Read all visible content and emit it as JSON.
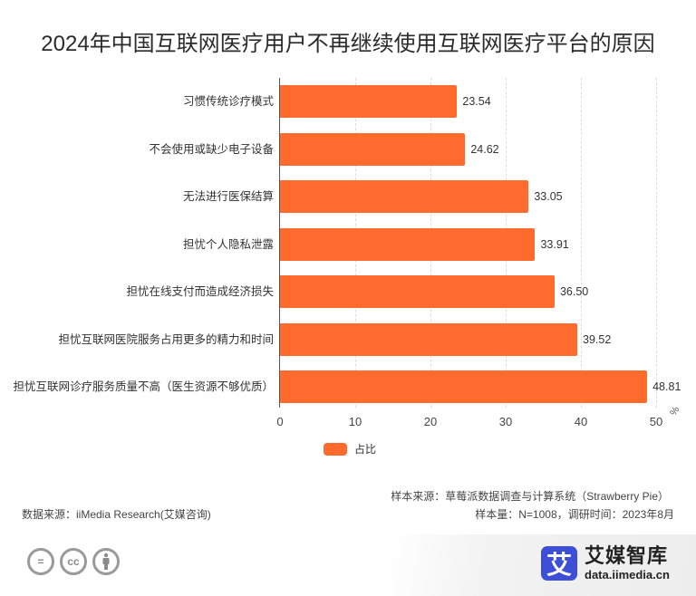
{
  "title": "2024年中国互联网医疗用户不再继续使用互联网医疗平台的原因",
  "chart_data": {
    "type": "bar",
    "orientation": "horizontal",
    "title": "2024年中国互联网医疗用户不再继续使用互联网医疗平台的原因",
    "categories": [
      "习惯传统诊疗模式",
      "不会使用或缺少电子设备",
      "无法进行医保结算",
      "担忧个人隐私泄露",
      "担忧在线支付而造成经济损失",
      "担忧互联网医院服务占用更多的精力和时间",
      "担忧互联网诊疗服务质量不高（医生资源不够优质）"
    ],
    "series": [
      {
        "name": "占比",
        "color": "#fe6b2c",
        "values": [
          23.54,
          24.62,
          33.05,
          33.91,
          36.5,
          39.52,
          48.81
        ]
      }
    ],
    "value_labels": [
      "23.54",
      "24.62",
      "33.05",
      "33.91",
      "36.50",
      "39.52",
      "48.81"
    ],
    "xlabel": "",
    "ylabel": "",
    "x_unit": "%",
    "xlim": [
      0,
      50
    ],
    "x_ticks": [
      "0",
      "10",
      "20",
      "30",
      "40",
      "50"
    ],
    "grid": "vertical dashed",
    "legend_position": "bottom"
  },
  "legend": {
    "label": "占比"
  },
  "notes": {
    "sample_source": "样本来源：草莓派数据调查与计算系统（Strawberry Pie）",
    "sample_size": "样本量：N=1008，调研时间：2023年8月",
    "data_source": "数据来源：iiMedia Research(艾媒咨询)"
  },
  "footer": {
    "license_icons": [
      "no-derivatives-icon",
      "cc-icon",
      "attribution-icon"
    ],
    "cc_text": "cc",
    "eq_text": "=",
    "logo_mark": "艾",
    "logo_cn": "艾媒智库",
    "logo_url": "data.iimedia.cn"
  }
}
